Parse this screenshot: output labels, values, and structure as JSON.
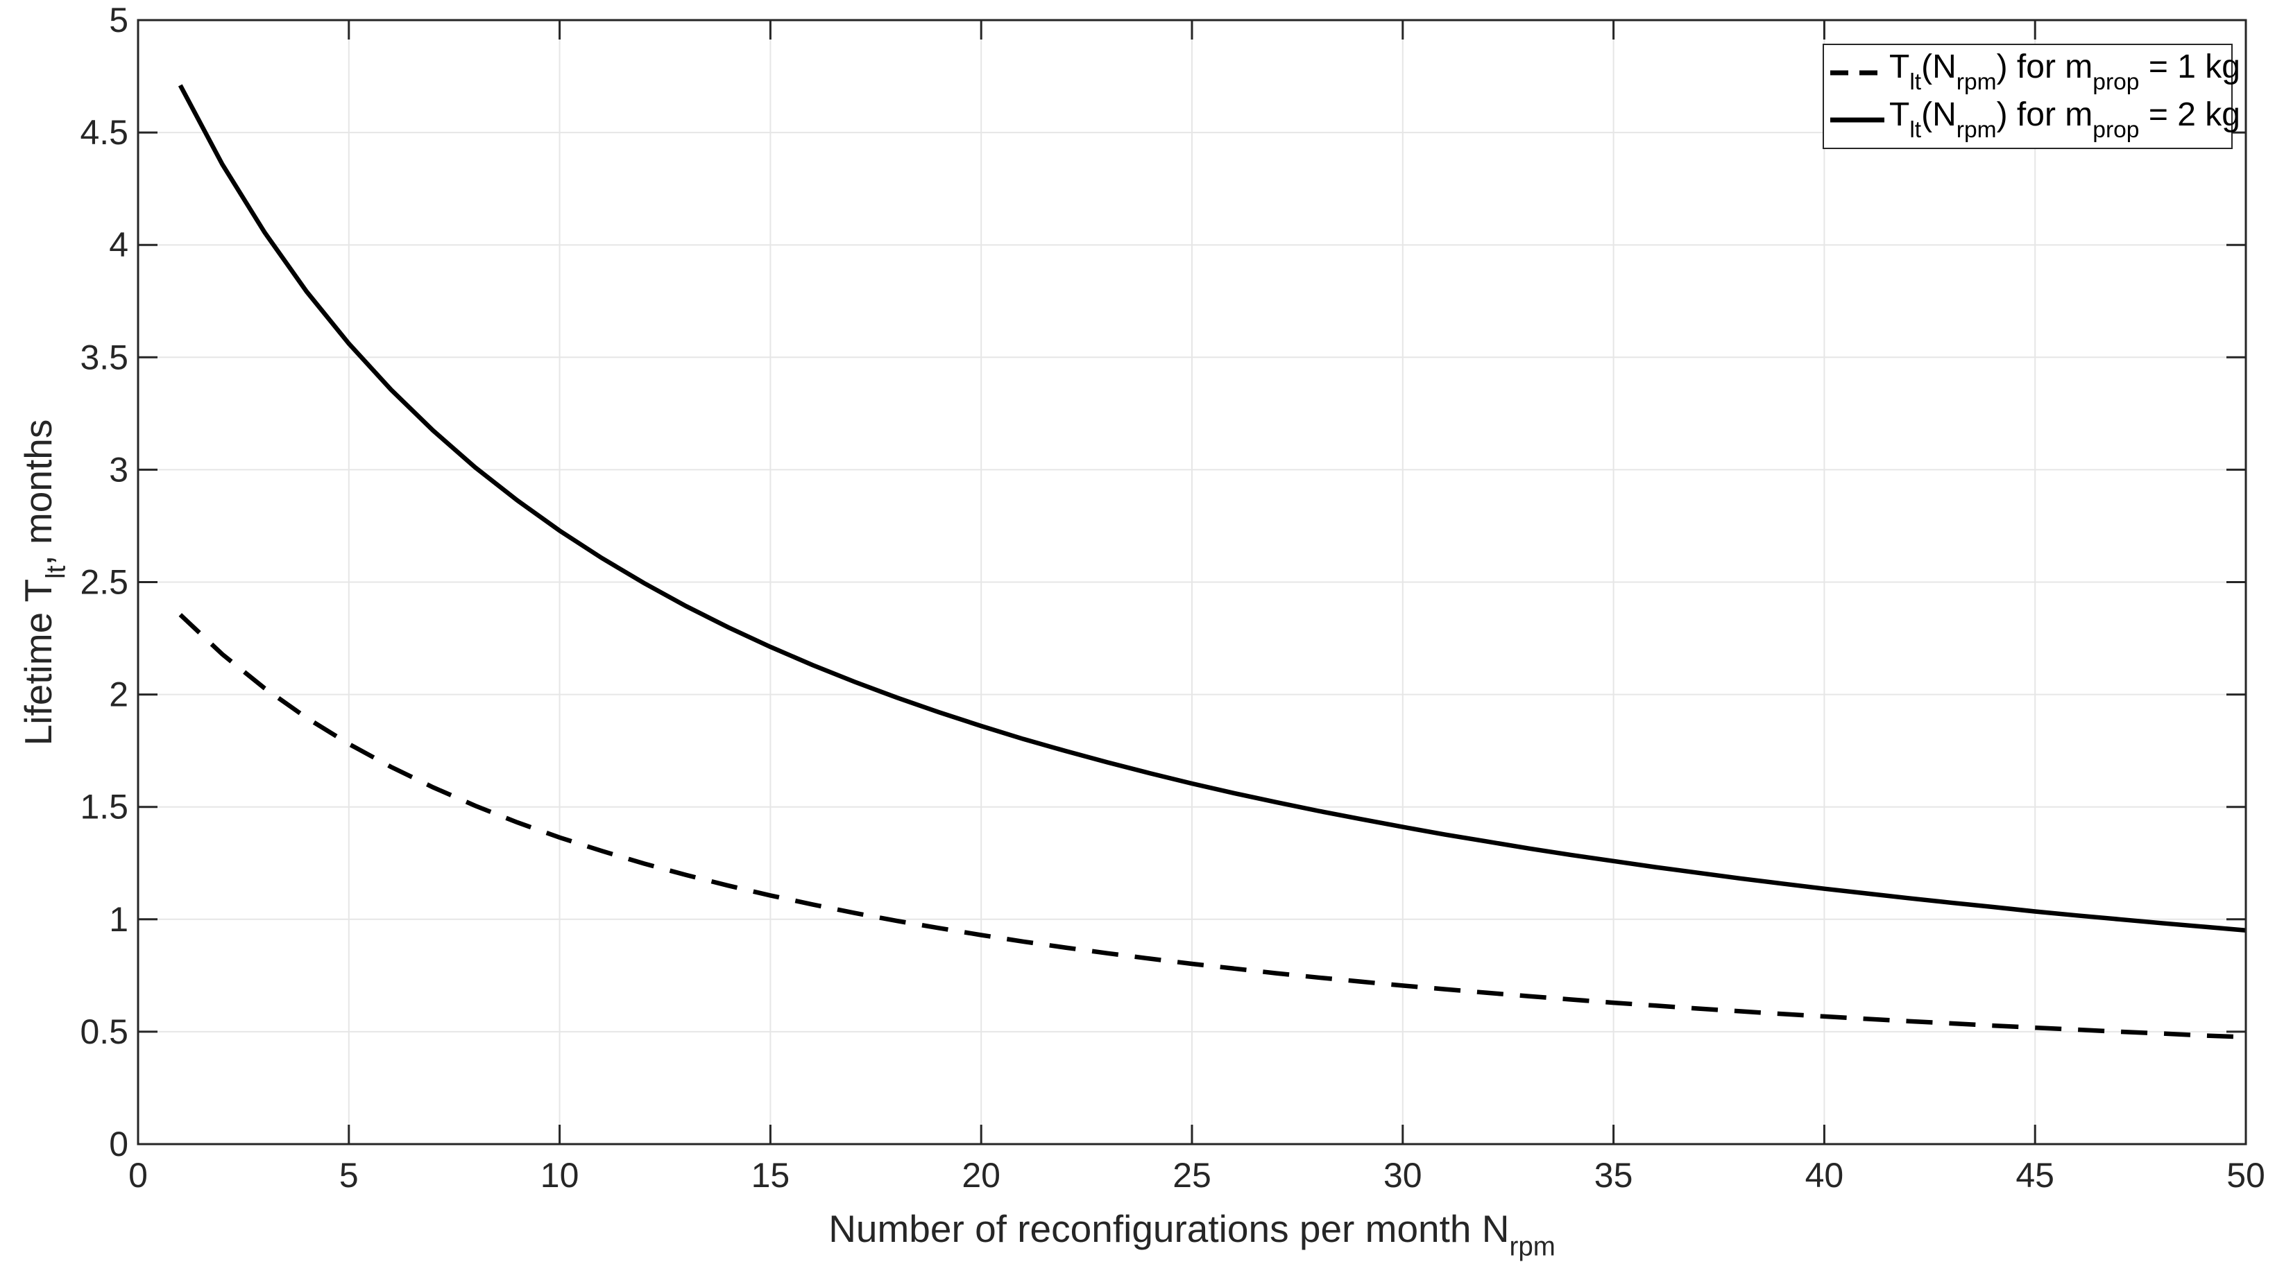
{
  "figure": {
    "background": "#ffffff",
    "axis_color": "#262626",
    "grid_color": "#e6e6e6",
    "text_color": "#262626"
  },
  "chart_data": {
    "type": "line",
    "title": "",
    "xlabel": "Number of reconfigurations per month N_rpm",
    "ylabel": "Lifetime T_lt, months",
    "xlabel_segments": [
      {
        "t": "Number of reconfigurations per month N"
      },
      {
        "sub": "rpm"
      }
    ],
    "ylabel_segments": [
      {
        "t": "Lifetime T"
      },
      {
        "sub": "lt"
      },
      {
        "t": ", months"
      }
    ],
    "xlim": [
      0,
      50
    ],
    "ylim": [
      0,
      5
    ],
    "xticks": {
      "values": [
        0,
        5,
        10,
        15,
        20,
        25,
        30,
        35,
        40,
        45,
        50
      ],
      "labels": [
        "0",
        "5",
        "10",
        "15",
        "20",
        "25",
        "30",
        "35",
        "40",
        "45",
        "50"
      ]
    },
    "yticks": {
      "values": [
        0,
        0.5,
        1,
        1.5,
        2,
        2.5,
        3,
        3.5,
        4,
        4.5,
        5
      ],
      "labels": [
        "0",
        "0.5",
        "1",
        "1.5",
        "2",
        "2.5",
        "3",
        "3.5",
        "4",
        "4.5",
        "5"
      ]
    },
    "grid": true,
    "legend_position": "top-right",
    "series": [
      {
        "name": "T_lt(N_rpm) for m_prop = 1 kg",
        "label_segments": [
          {
            "t": "T"
          },
          {
            "sub": "lt"
          },
          {
            "t": "(N"
          },
          {
            "sub": "rpm"
          },
          {
            "t": ") for m"
          },
          {
            "sub": "prop"
          },
          {
            "t": " = 1 kg"
          }
        ],
        "style": "dashed",
        "color": "#000000",
        "x": [
          1,
          2,
          3,
          4,
          5,
          6,
          7,
          8,
          9,
          10,
          11,
          12,
          13,
          14,
          15,
          16,
          17,
          18,
          19,
          20,
          21,
          22,
          23,
          24,
          25,
          26,
          27,
          28,
          29,
          30,
          31,
          32,
          33,
          34,
          35,
          36,
          37,
          38,
          39,
          40,
          41,
          42,
          43,
          44,
          45,
          46,
          47,
          48,
          49,
          50
        ],
        "y": [
          2.355,
          2.179,
          2.028,
          1.896,
          1.78,
          1.678,
          1.587,
          1.505,
          1.431,
          1.364,
          1.304,
          1.248,
          1.197,
          1.15,
          1.106,
          1.066,
          1.028,
          0.993,
          0.961,
          0.93,
          0.901,
          0.874,
          0.849,
          0.825,
          0.802,
          0.781,
          0.76,
          0.741,
          0.723,
          0.705,
          0.689,
          0.673,
          0.658,
          0.643,
          0.629,
          0.616,
          0.603,
          0.591,
          0.579,
          0.568,
          0.557,
          0.547,
          0.537,
          0.527,
          0.518,
          0.509,
          0.5,
          0.492,
          0.483,
          0.476
        ]
      },
      {
        "name": "T_lt(N_rpm) for m_prop = 2 kg",
        "label_segments": [
          {
            "t": "T"
          },
          {
            "sub": "lt"
          },
          {
            "t": "(N"
          },
          {
            "sub": "rpm"
          },
          {
            "t": ") for m"
          },
          {
            "sub": "prop"
          },
          {
            "t": " = 2 kg"
          }
        ],
        "style": "solid",
        "color": "#000000",
        "x": [
          1,
          2,
          3,
          4,
          5,
          6,
          7,
          8,
          9,
          10,
          11,
          12,
          13,
          14,
          15,
          16,
          17,
          18,
          19,
          20,
          21,
          22,
          23,
          24,
          25,
          26,
          27,
          28,
          29,
          30,
          31,
          32,
          33,
          34,
          35,
          36,
          37,
          38,
          39,
          40,
          41,
          42,
          43,
          44,
          45,
          46,
          47,
          48,
          49,
          50
        ],
        "y": [
          4.71,
          4.358,
          4.056,
          3.792,
          3.561,
          3.356,
          3.174,
          3.01,
          2.863,
          2.729,
          2.607,
          2.496,
          2.393,
          2.299,
          2.212,
          2.131,
          2.056,
          1.986,
          1.921,
          1.86,
          1.802,
          1.749,
          1.698,
          1.65,
          1.604,
          1.561,
          1.521,
          1.482,
          1.446,
          1.411,
          1.377,
          1.346,
          1.315,
          1.286,
          1.259,
          1.232,
          1.207,
          1.182,
          1.159,
          1.136,
          1.115,
          1.094,
          1.074,
          1.055,
          1.035,
          1.017,
          1.0,
          0.983,
          0.967,
          0.951
        ]
      }
    ]
  }
}
